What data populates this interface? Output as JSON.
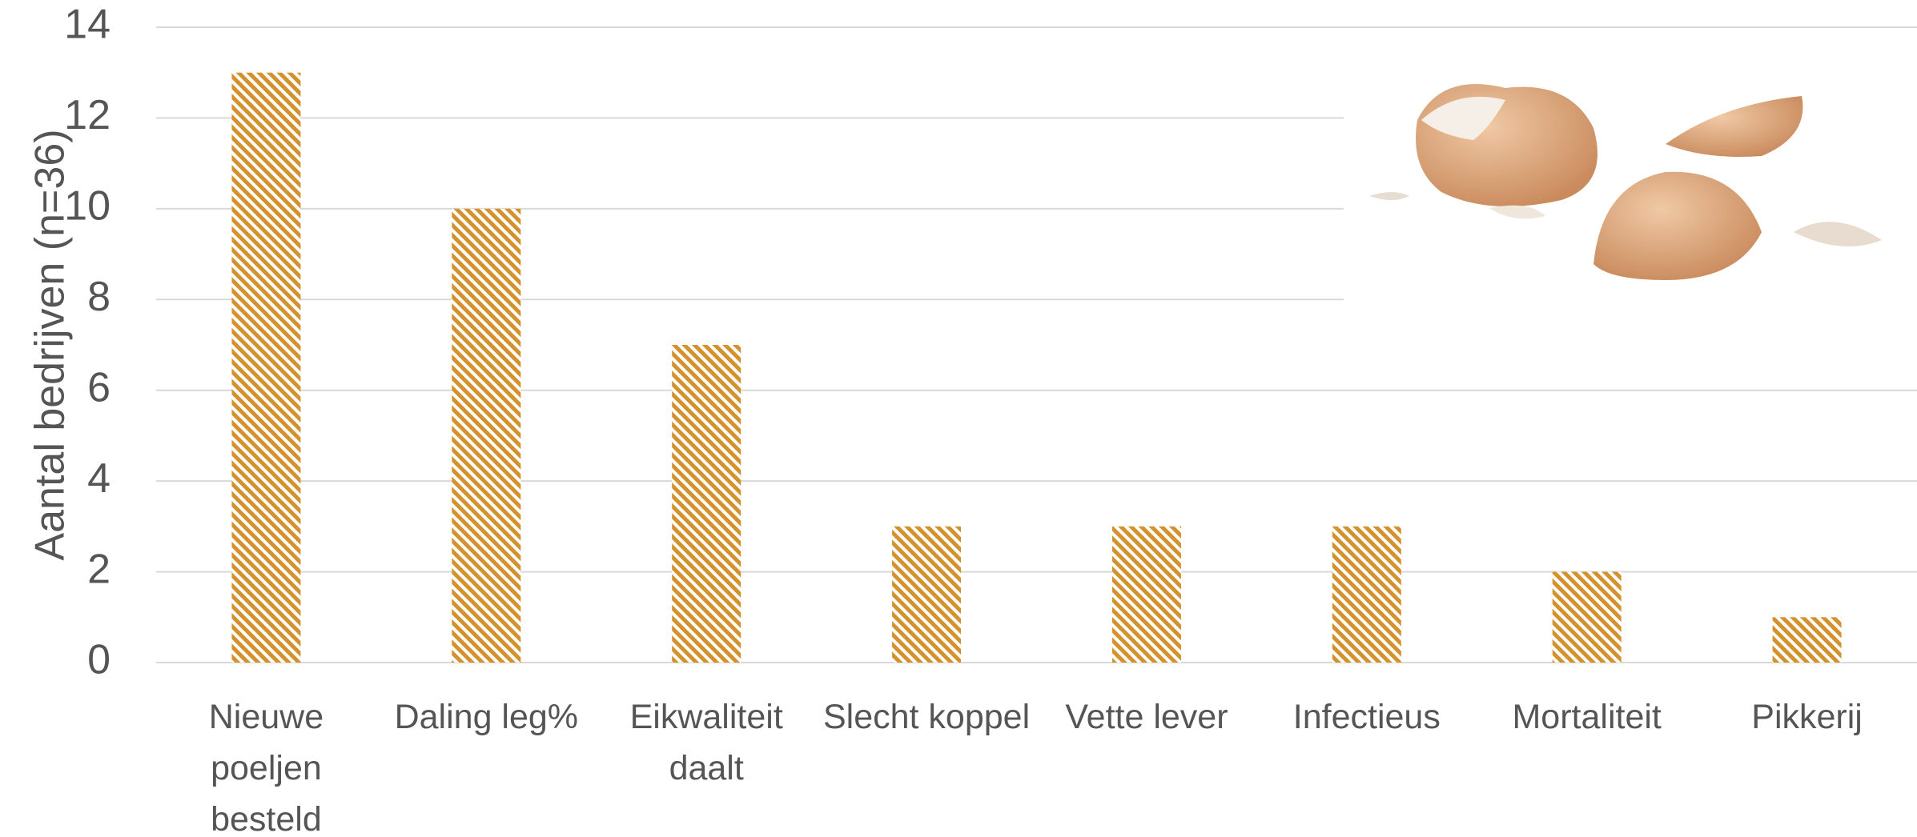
{
  "chart_data": {
    "type": "bar",
    "ylabel": "Aantal bedrijven (n=36)",
    "categories": [
      "Nieuwe poeljen besteld",
      "Daling leg%",
      "Eikwaliteit daalt",
      "Slecht koppel",
      "Vette lever",
      "Infectieus",
      "Mortaliteit",
      "Pikkerij"
    ],
    "values": [
      13,
      10,
      7,
      3,
      3,
      3,
      2,
      1
    ],
    "color": "#d4922e",
    "ylim": [
      0,
      14
    ],
    "yticks": [
      0,
      2,
      4,
      6,
      8,
      10,
      12,
      14
    ],
    "grid": true
  }
}
